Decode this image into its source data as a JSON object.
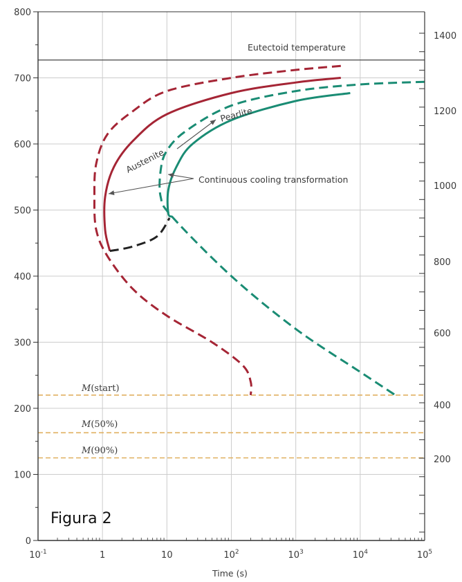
{
  "chart_data": {
    "type": "line",
    "xlabel": "Time (s)",
    "x_scale": "log",
    "xlim": [
      0.1,
      100000
    ],
    "x_ticks": [
      "10",
      "1",
      "10",
      "10",
      "10",
      "10",
      "10"
    ],
    "x_tick_exponents": [
      "-1",
      "",
      "",
      "2",
      "3",
      "4",
      "5"
    ],
    "ylim": [
      0,
      800
    ],
    "y_ticks": [
      "0",
      "100",
      "200",
      "300",
      "400",
      "500",
      "600",
      "700",
      "800"
    ],
    "y2_ticks": [
      "200",
      "400",
      "600",
      "800",
      "1000",
      "1200",
      "1400"
    ],
    "grid": true,
    "figure_label": "Figura 2",
    "eutectoid": {
      "label": "Eutectoid temperature",
      "value": 727
    },
    "horizontal_lines": [
      {
        "label": "M(start)",
        "label_prefix": "M",
        "label_suffix": "(start)",
        "value": 220
      },
      {
        "label": "M(50%)",
        "label_prefix": "M",
        "label_suffix": "(50%)",
        "value": 163
      },
      {
        "label": "M(90%)",
        "label_prefix": "M",
        "label_suffix": "(90%)",
        "value": 125
      }
    ],
    "annotations": {
      "austenite": "Austenite",
      "pearlite": "Pearlite",
      "continuous": "Continuous cooling transformation"
    },
    "series": [
      {
        "key": "red_dashed_start",
        "color": "#a52535",
        "style": "dashed",
        "x": [
          5000,
          1000,
          100,
          10,
          3,
          1.2,
          0.8,
          0.75,
          0.8,
          1.2,
          3,
          10,
          50,
          150,
          200,
          200
        ],
        "y": [
          718,
          712,
          700,
          680,
          650,
          615,
          570,
          520,
          470,
          430,
          380,
          340,
          300,
          265,
          240,
          220
        ]
      },
      {
        "key": "red_solid_finish",
        "color": "#a52535",
        "style": "solid",
        "x": [
          5000,
          1000,
          100,
          10,
          3,
          1.5,
          1.1,
          1.1,
          1.3
        ],
        "y": [
          700,
          693,
          677,
          645,
          605,
          565,
          520,
          470,
          438
        ]
      },
      {
        "key": "black_dashed",
        "color": "#222222",
        "style": "dashed",
        "x": [
          1.3,
          3,
          7,
          11
        ],
        "y": [
          438,
          445,
          460,
          488
        ]
      },
      {
        "key": "green_dashed",
        "color": "#1a8c74",
        "style": "dashed",
        "x": [
          100000,
          10000,
          1000,
          100,
          20,
          10,
          8,
          8,
          12,
          100,
          1000,
          10000,
          35000
        ],
        "y": [
          694,
          690,
          680,
          658,
          620,
          590,
          560,
          520,
          490,
          400,
          320,
          255,
          220
        ]
      },
      {
        "key": "green_solid",
        "color": "#1a8c74",
        "style": "solid",
        "x": [
          7000,
          1000,
          100,
          25,
          14,
          10.5,
          10.5,
          12
        ],
        "y": [
          677,
          665,
          636,
          600,
          565,
          530,
          495,
          490
        ]
      }
    ],
    "colors": {
      "eutectoid": "#555555",
      "m_lines": "#e0b060",
      "axes": "#333333",
      "grid": "#cccccc",
      "text": "#3a3a3a"
    }
  }
}
